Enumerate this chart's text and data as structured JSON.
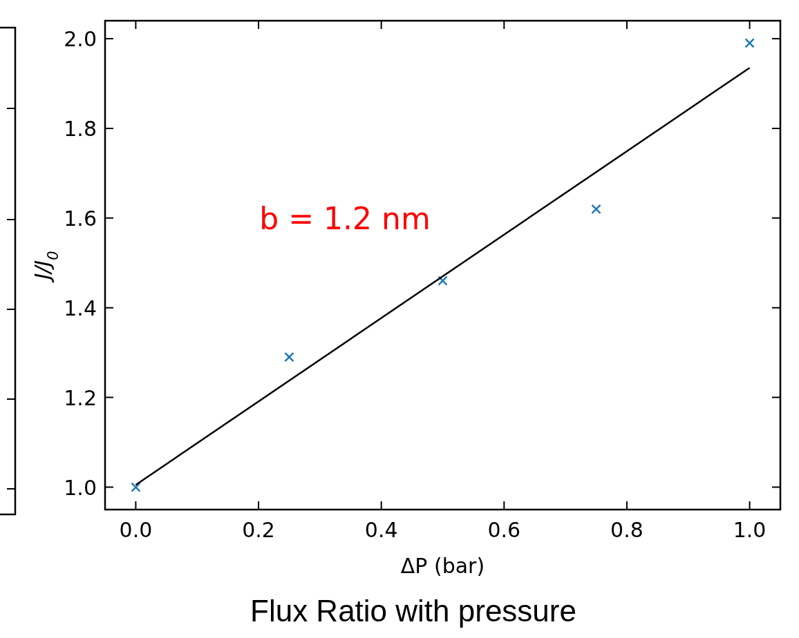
{
  "chart_data": {
    "type": "scatter",
    "title": "Flux Ratio with pressure",
    "xlabel": "ΔP (bar)",
    "ylabel": "J/J$_{0}$",
    "annotations": [
      "b = 1.2 nm"
    ],
    "x": [
      0,
      0.25,
      0.5,
      0.75,
      1.0
    ],
    "series": [
      {
        "color": "#1f77b4",
        "marker": "cross",
        "values": [
          1.0,
          1.29,
          1.46,
          1.62,
          1.99
        ]
      },
      {
        "type": "line",
        "color": "#000000",
        "x": [
          0,
          1.0
        ],
        "values": [
          1.005,
          1.935
        ]
      }
    ],
    "xlim": [
      -0.05,
      1.05
    ],
    "ylim": [
      0.95,
      2.04
    ],
    "xticks": [
      {
        "value": 0,
        "label": "0.0"
      },
      0.2,
      0.4,
      0.6,
      0.8,
      {
        "value": 1.0,
        "label": "1.0"
      }
    ],
    "yticks": [
      {
        "value": 1.0,
        "label": "1.0"
      },
      1.2,
      1.4,
      1.6,
      1.8,
      {
        "value": 2.0,
        "label": "2.0"
      }
    ],
    "grid": false
  }
}
